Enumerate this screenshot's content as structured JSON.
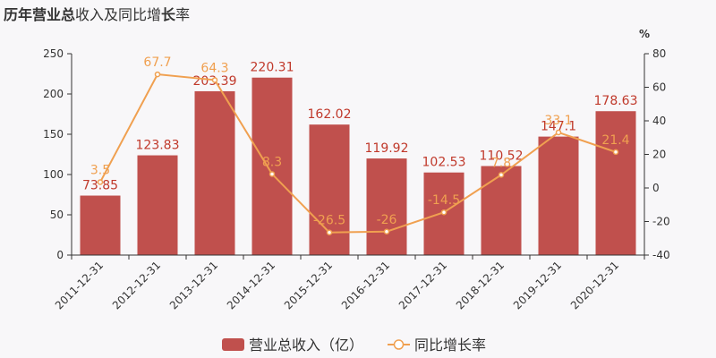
{
  "title_parts": [
    {
      "text": "历年",
      "bold": true
    },
    {
      "text": "营业总",
      "bold": true
    },
    {
      "text": "收入及同比增",
      "bold": false
    },
    {
      "text": "长",
      "bold": true
    },
    {
      "text": "率",
      "bold": false
    }
  ],
  "colors": {
    "bar": "#c0504d",
    "line": "#f0a050",
    "axis": "#333333"
  },
  "chart_data": {
    "type": "bar",
    "categories": [
      "2011-12-31",
      "2012-12-31",
      "2013-12-31",
      "2014-12-31",
      "2015-12-31",
      "2016-12-31",
      "2017-12-31",
      "2018-12-31",
      "2019-12-31",
      "2020-12-31"
    ],
    "series": [
      {
        "name": "营业总收入（亿）",
        "type": "bar",
        "axis": "left",
        "values": [
          73.85,
          123.83,
          203.39,
          220.31,
          162.02,
          119.92,
          102.53,
          110.52,
          147.1,
          178.63
        ],
        "labels": [
          "73.85",
          "123.83",
          "203.39",
          "220.31",
          "162.02",
          "119.92",
          "102.53",
          "110.52",
          "147.1",
          "178.63"
        ]
      },
      {
        "name": "同比增长率",
        "type": "line",
        "axis": "right",
        "values": [
          3.5,
          67.7,
          64.3,
          8.3,
          -26.5,
          -26,
          -14.5,
          7.8,
          33.1,
          21.4
        ],
        "labels": [
          "3.5",
          "67.7",
          "64.3",
          "8.3",
          "-26.5",
          "-26",
          "-14.5",
          "7.8",
          "33.1",
          "21.4"
        ]
      }
    ],
    "left_axis": {
      "min": 0,
      "max": 250,
      "ticks": [
        0,
        50,
        100,
        150,
        200,
        250
      ]
    },
    "right_axis": {
      "min": -40,
      "max": 80,
      "ticks": [
        -40,
        -20,
        0,
        20,
        40,
        60,
        80
      ],
      "unit": "%"
    },
    "grid": false,
    "legend_position": "bottom"
  }
}
